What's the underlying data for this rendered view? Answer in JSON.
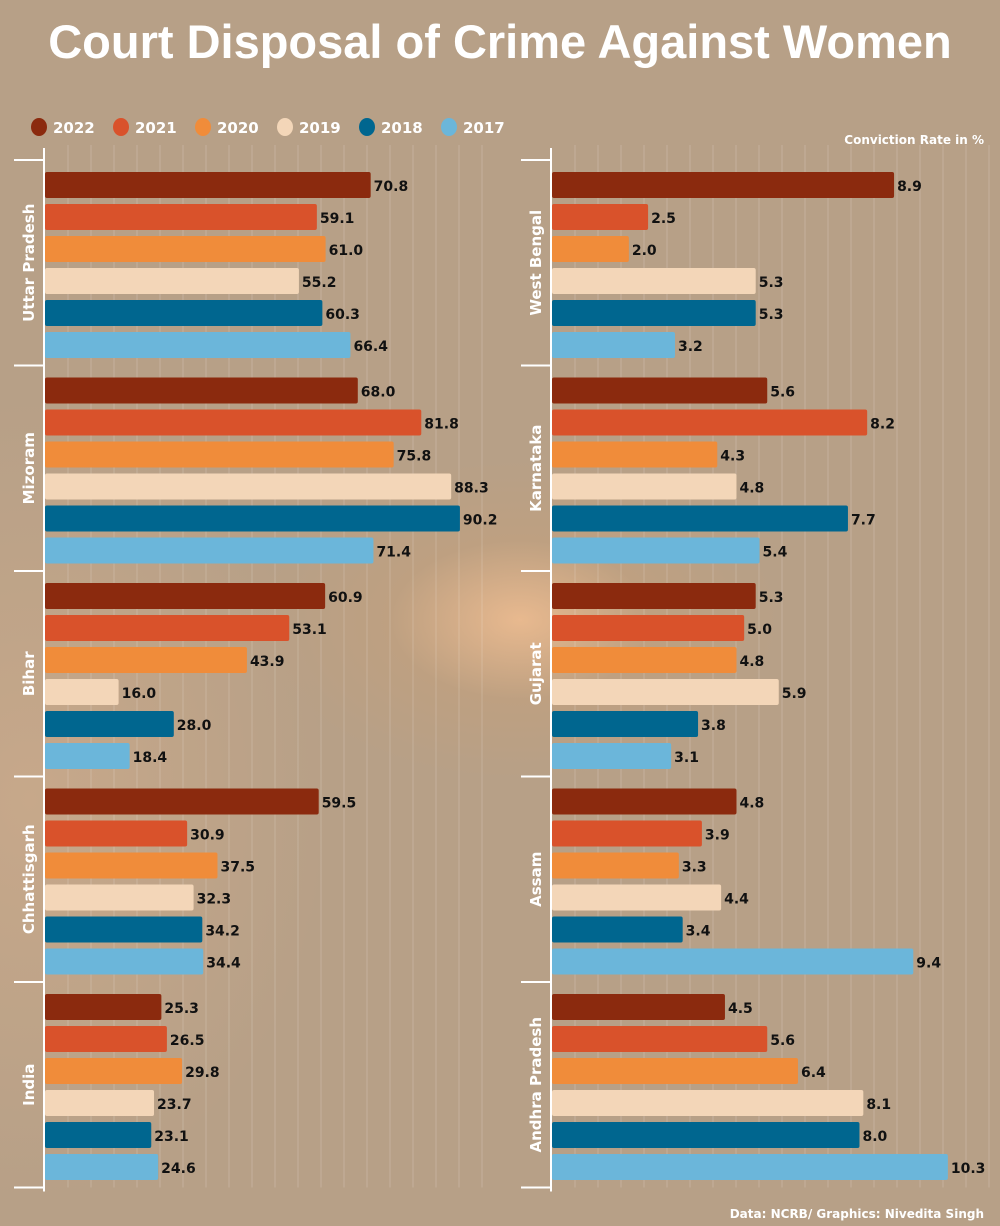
{
  "chart_data": {
    "type": "bar",
    "orientation": "horizontal",
    "title": "Court Disposal of Crime Against Women",
    "unit_label": "Conviction Rate in %",
    "source": "Data: NCRB/ Graphics: Nivedita Singh",
    "legend_position": "top-left",
    "series_names": [
      "2022",
      "2021",
      "2020",
      "2019",
      "2018",
      "2017"
    ],
    "colors": {
      "2022": "#8b2a0e",
      "2021": "#d9522b",
      "2020": "#f08c3a",
      "2019": "#f3d6b8",
      "2018": "#00668f",
      "2017": "#6bb6da"
    },
    "grid": true,
    "panels": [
      {
        "xlim": [
          0,
          100
        ],
        "groups": [
          {
            "name": "Uttar Pradesh",
            "values": [
              70.8,
              59.1,
              61.0,
              55.2,
              60.3,
              66.4
            ]
          },
          {
            "name": "Mizoram",
            "values": [
              68.0,
              81.8,
              75.8,
              88.3,
              90.2,
              71.4
            ]
          },
          {
            "name": "Bihar",
            "values": [
              60.9,
              53.1,
              43.9,
              16.0,
              28.0,
              18.4
            ]
          },
          {
            "name": "Chhattisgarh",
            "values": [
              59.5,
              30.9,
              37.5,
              32.3,
              34.2,
              34.4
            ]
          },
          {
            "name": "India",
            "values": [
              25.3,
              26.5,
              29.8,
              23.7,
              23.1,
              24.6
            ]
          }
        ]
      },
      {
        "xlim": [
          0,
          11.5
        ],
        "groups": [
          {
            "name": "West Bengal",
            "values": [
              8.9,
              2.5,
              2.0,
              5.3,
              5.3,
              3.2
            ]
          },
          {
            "name": "Karnataka",
            "values": [
              5.6,
              8.2,
              4.3,
              4.8,
              7.7,
              5.4
            ]
          },
          {
            "name": "Gujarat",
            "values": [
              5.3,
              5.0,
              4.8,
              5.9,
              3.8,
              3.1
            ]
          },
          {
            "name": "Assam",
            "values": [
              4.8,
              3.9,
              3.3,
              4.4,
              3.4,
              9.4
            ]
          },
          {
            "name": "Andhra Pradesh",
            "values": [
              4.5,
              5.6,
              6.4,
              8.1,
              8.0,
              10.3
            ]
          }
        ]
      }
    ]
  }
}
